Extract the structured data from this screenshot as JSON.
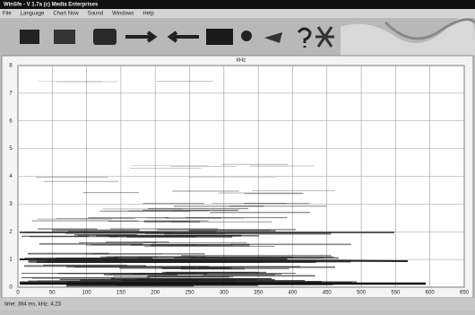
{
  "window": {
    "title": "WinSfe - V 1.7a (c) Media Enterprises"
  },
  "menu": [
    "File",
    "Language",
    "Chart Now",
    "Sound",
    "Windows",
    "Help"
  ],
  "chart_data": {
    "type": "spectrogram",
    "title": "kHz",
    "xlim": [
      0,
      650
    ],
    "xticks": [
      0,
      50,
      100,
      150,
      200,
      250,
      300,
      350,
      400,
      450,
      500,
      550,
      600,
      650
    ],
    "ylim": [
      0,
      8
    ],
    "yticks": [
      0,
      1,
      2,
      3,
      4,
      5,
      6,
      7,
      8
    ],
    "grid": true
  },
  "status": "time: 384 ms, kHz: 4.23"
}
